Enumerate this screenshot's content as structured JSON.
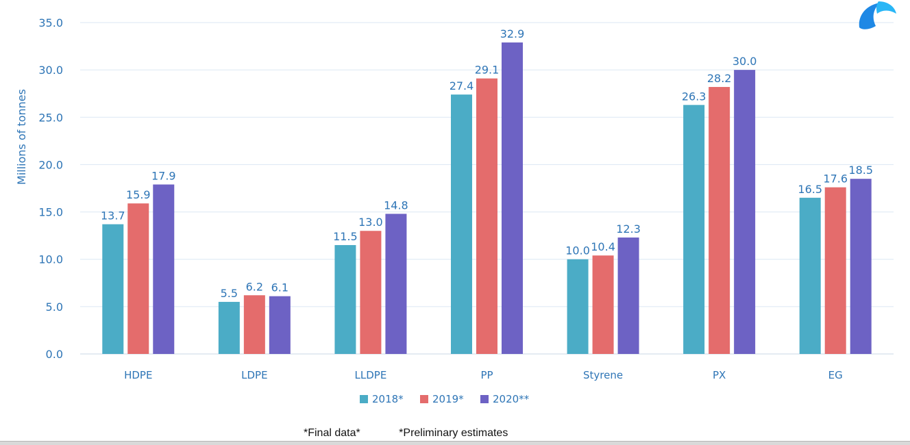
{
  "chart_data": {
    "type": "bar",
    "ylabel": "Millions of tonnes",
    "xlabel": "",
    "ylim": [
      0,
      35
    ],
    "yticks": [
      "0.0",
      "5.0",
      "10.0",
      "15.0",
      "20.0",
      "25.0",
      "30.0",
      "35.0"
    ],
    "grid": true,
    "legend_position": "bottom",
    "categories": [
      "HDPE",
      "LDPE",
      "LLDPE",
      "PP",
      "Styrene",
      "PX",
      "EG"
    ],
    "series": [
      {
        "name": "2018*",
        "color": "#4bacc6",
        "values": [
          13.7,
          5.5,
          11.5,
          27.4,
          10.0,
          26.3,
          16.5
        ]
      },
      {
        "name": "2019*",
        "color": "#e46c6c",
        "values": [
          15.9,
          6.2,
          13.0,
          29.1,
          10.4,
          28.2,
          17.6
        ]
      },
      {
        "name": "2020**",
        "color": "#6d62c4",
        "values": [
          17.9,
          6.1,
          14.8,
          32.9,
          12.3,
          30.0,
          18.5
        ]
      }
    ]
  },
  "colors": {
    "axis_text": "#2e75b6",
    "data_label": "#2e75b6",
    "gridline": "#dbe7f3"
  },
  "footnotes": {
    "final": "*Final data*",
    "preliminary": "*Preliminary estimates"
  }
}
